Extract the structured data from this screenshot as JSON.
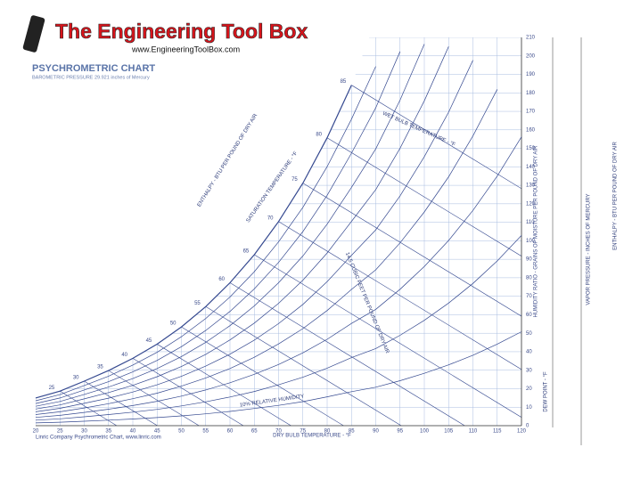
{
  "header": {
    "logo": "The Engineering Tool Box",
    "url": "www.EngineeringToolBox.com"
  },
  "footer": {
    "credit": "Linric Company Psychrometric Chart, www.linric.com"
  },
  "chart_data": {
    "type": "psychrometric",
    "title": "PSYCHROMETRIC CHART",
    "subtitle": "BAROMETRIC PRESSURE 29.921 inches of Mercury",
    "xlabel": "DRY BULB TEMPERATURE - °F",
    "ylabel": "HUMIDITY RATIO - GRAINS OF MOISTURE PER POUND OF DRY AIR",
    "x": [
      20,
      25,
      30,
      35,
      40,
      45,
      50,
      55,
      60,
      65,
      70,
      75,
      80,
      85,
      90,
      95,
      100,
      105,
      110,
      115,
      120
    ],
    "xlim": [
      20,
      120
    ],
    "xticks": [
      20,
      25,
      30,
      35,
      40,
      45,
      50,
      55,
      60,
      65,
      70,
      75,
      80,
      85,
      90,
      95,
      100,
      105,
      110,
      115,
      120
    ],
    "ylim": [
      0,
      210
    ],
    "yticks": [
      0,
      10,
      20,
      30,
      40,
      50,
      60,
      70,
      80,
      90,
      100,
      110,
      120,
      130,
      140,
      150,
      160,
      170,
      180,
      190,
      200,
      210
    ],
    "grid": true,
    "grid_color": "#a9bde0",
    "color": "#34488f",
    "series": [
      {
        "values": [
          1.5,
          1.9,
          2.4,
          3.0,
          3.6,
          4.4,
          5.3,
          6.4,
          7.7,
          9.3,
          11,
          13,
          15.6,
          18.4,
          20.8,
          24.3,
          28.3,
          32.9,
          38.1,
          44.1,
          50.8
        ]
      },
      {
        "values": [
          3.0,
          3.7,
          4.8,
          6.0,
          7.3,
          8.8,
          10.7,
          12.9,
          15.5,
          18.5,
          22.1,
          26.2,
          31.1,
          36.8,
          41.7,
          48.9,
          57.0,
          66.3,
          76.9,
          89.1,
          102.9
        ]
      },
      {
        "values": [
          4.5,
          5.6,
          7.2,
          8.9,
          10.9,
          13.2,
          16,
          19.3,
          23.2,
          27.8,
          33.1,
          39.4,
          46.7,
          55.3,
          62.9,
          73.8,
          86.1,
          100.2,
          116.4,
          135,
          156.2
        ]
      },
      {
        "values": [
          6,
          7.5,
          9.6,
          11.9,
          14.6,
          17.6,
          21.4,
          25.8,
          30.9,
          37,
          44.2,
          52.5,
          62.3,
          73.7,
          84.3,
          98.9,
          115.6,
          134.6,
          156.7,
          181.9,
          null
        ]
      },
      {
        "values": [
          7.5,
          9.4,
          12.1,
          14.9,
          18.2,
          22.1,
          26.7,
          32.2,
          38.7,
          46.3,
          55.2,
          65.6,
          77.9,
          92.1,
          105.9,
          124.3,
          145.5,
          169.6,
          197.6,
          null,
          null
        ]
      },
      {
        "values": [
          9,
          11.2,
          14.5,
          17.9,
          21.8,
          26.5,
          32,
          38.6,
          46.4,
          55.5,
          66.2,
          78.7,
          93.4,
          110.5,
          127.7,
          150.1,
          175.7,
          205.1,
          null,
          null,
          null
        ]
      },
      {
        "values": [
          10.5,
          13.1,
          16.9,
          20.9,
          25.5,
          30.9,
          37.4,
          45.1,
          54.1,
          64.8,
          77.3,
          91.8,
          109,
          128.9,
          149.7,
          176.1,
          206.4,
          null,
          null,
          null,
          null
        ]
      },
      {
        "values": [
          12,
          15,
          19.3,
          23.8,
          29.1,
          35.3,
          42.7,
          51.5,
          61.8,
          74,
          88.3,
          105,
          124.6,
          147.4,
          171.9,
          202.4,
          null,
          null,
          null,
          null,
          null
        ]
      },
      {
        "values": [
          13.5,
          16.8,
          21.7,
          26.8,
          32.8,
          39.7,
          48.1,
          58,
          69.6,
          83.3,
          99.4,
          118.1,
          140.1,
          165.8,
          194.3,
          null,
          null,
          null,
          null,
          null,
          null
        ]
      },
      {
        "values": [
          15,
          18.7,
          24.1,
          29.8,
          36.4,
          44.1,
          53.4,
          64.4,
          77.3,
          92.5,
          110.4,
          131.2,
          155.7,
          184.2,
          null,
          null,
          null,
          null,
          null,
          null,
          null
        ]
      }
    ],
    "wet_bulb": [
      25,
      30,
      35,
      40,
      45,
      50,
      55,
      60,
      65,
      70,
      75,
      80,
      85
    ],
    "annotations": [
      "10% RELATIVE HUMIDITY",
      "WET BULB TEMPERATURE - °F",
      "SATURATION TEMPERATURE - °F",
      "ENTHALPY - BTU PER POUND OF DRY AIR",
      "14.5 CUBIC FEET PER POUND OF DRY AIR",
      "DEW POINT - °F",
      "VAPOR PRESSURE - INCHES OF MERCURY",
      "ENTHALPY - BTU PER POUND OF DRY AIR"
    ]
  }
}
